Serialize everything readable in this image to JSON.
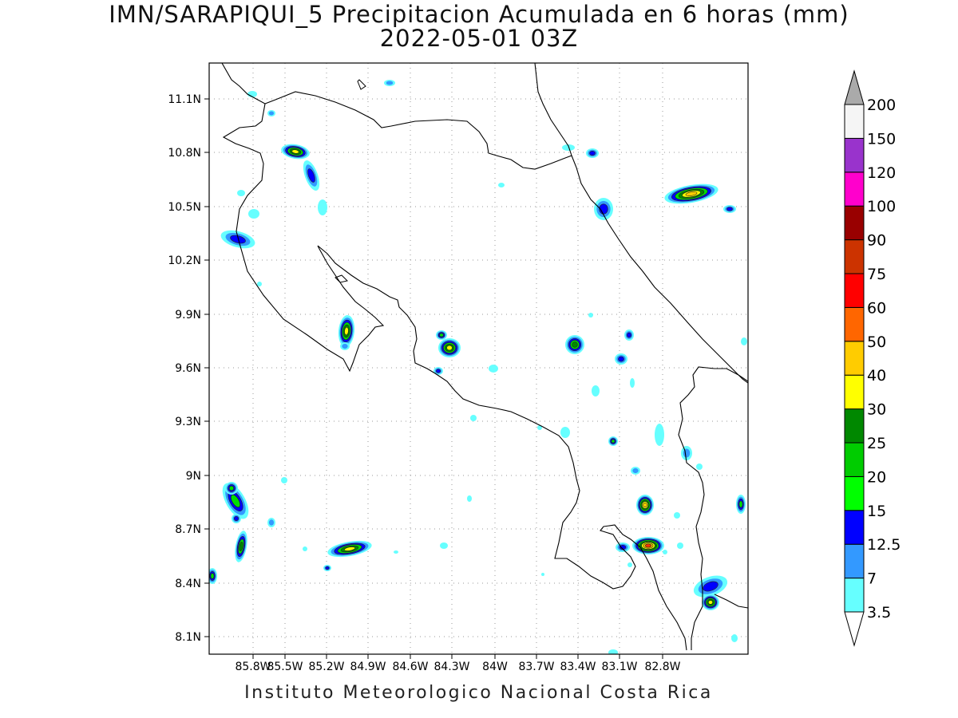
{
  "header": {
    "title": "IMN/SARAPIQUI_5 Precipitacion Acumulada en 6 horas (mm)",
    "subtitle": "2022-05-01 03Z"
  },
  "footer": {
    "credit": "Instituto Meteorologico Nacional Costa Rica"
  },
  "map": {
    "lat_labels": [
      "11.1N",
      "10.8N",
      "10.5N",
      "10.2N",
      "9.9N",
      "9.6N",
      "9.3N",
      "9N",
      "8.7N",
      "8.4N",
      "8.1N"
    ],
    "lon_labels": [
      "85.8W",
      "85.5W",
      "85.2W",
      "84.9W",
      "84.6W",
      "84.3W",
      "84W",
      "83.7W",
      "83.4W",
      "83.1W",
      "82.8W"
    ]
  },
  "colorbar": {
    "levels": [
      "3.5",
      "7",
      "12.5",
      "15",
      "20",
      "25",
      "30",
      "40",
      "50",
      "60",
      "75",
      "90",
      "100",
      "120",
      "150",
      "200"
    ],
    "colors": [
      "#66ffff",
      "#3399ff",
      "#0000ff",
      "#00ff00",
      "#00cc00",
      "#008800",
      "#ffff00",
      "#ffcc00",
      "#ff6600",
      "#ff0000",
      "#cc3300",
      "#990000",
      "#ff00cc",
      "#9933cc",
      "#f5f5f5",
      "#aaaaaa"
    ]
  },
  "precip_colors": {
    "l1": "#66ffff",
    "l2": "#3399ff",
    "l3": "#0000ff",
    "l4": "#00dd00",
    "l5": "#008800",
    "l6": "#ffff00",
    "l7": "#ffcc00",
    "l8": "#ff3300"
  }
}
